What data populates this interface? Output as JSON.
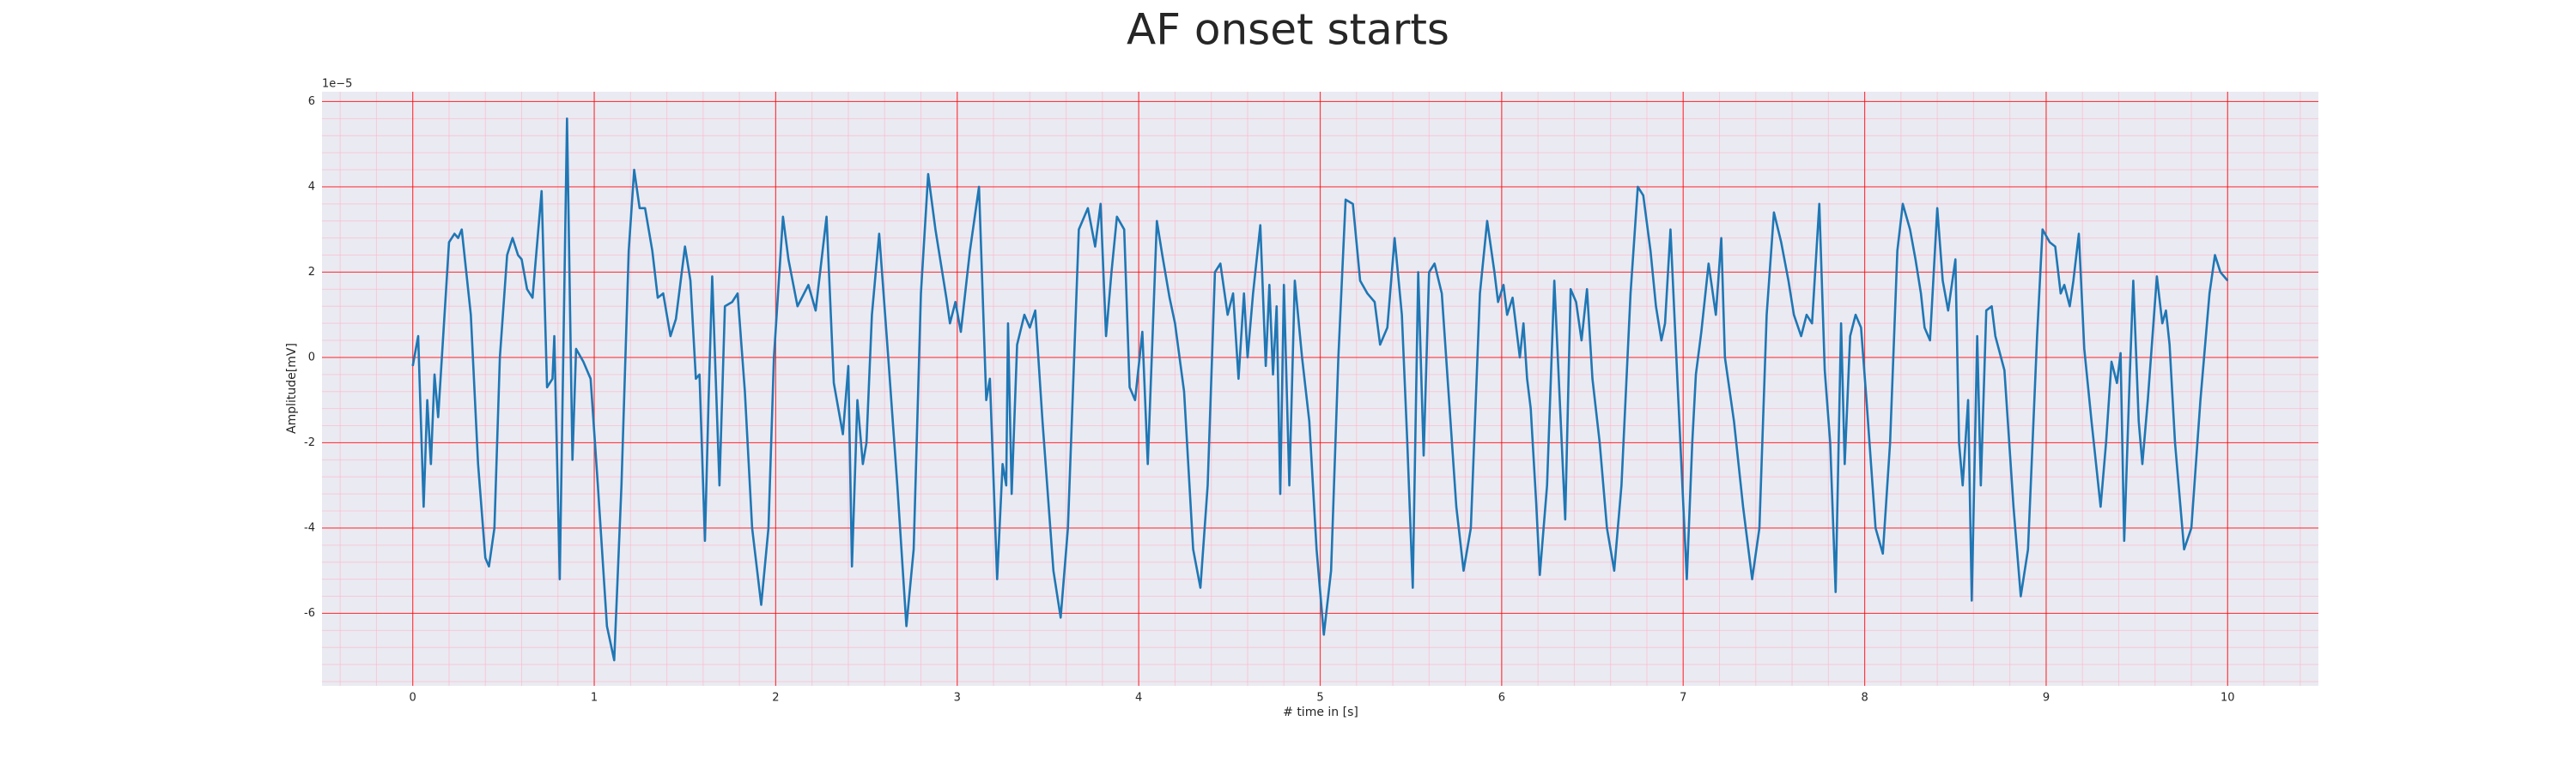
{
  "chart_data": {
    "type": "line",
    "title": "AF onset starts",
    "xlabel": "# time in [s]",
    "ylabel": "Amplitude[mV]",
    "y_offset_label": "1e−5",
    "xlim": [
      -0.5,
      10.5
    ],
    "ylim": [
      -7.7,
      6.23
    ],
    "xticks": [
      0,
      1,
      2,
      3,
      4,
      5,
      6,
      7,
      8,
      9,
      10
    ],
    "yticks": [
      -6,
      -4,
      -2,
      0,
      2,
      4,
      6
    ],
    "grid": true,
    "major_grid_color": "#ff0000",
    "minor_grid_color": "#ffb3c6",
    "minor_xstep": 0.2,
    "minor_ystep": 0.4,
    "background": "#eaeaf2",
    "color": "#1f77b4",
    "x": [
      0,
      0.03,
      0.06,
      0.08,
      0.1,
      0.12,
      0.14,
      0.2,
      0.23,
      0.25,
      0.27,
      0.32,
      0.36,
      0.4,
      0.42,
      0.45,
      0.48,
      0.52,
      0.55,
      0.58,
      0.6,
      0.63,
      0.66,
      0.71,
      0.74,
      0.77,
      0.78,
      0.81,
      0.85,
      0.88,
      0.9,
      0.94,
      0.98,
      1.02,
      1.07,
      1.11,
      1.15,
      1.19,
      1.22,
      1.25,
      1.28,
      1.32,
      1.35,
      1.38,
      1.42,
      1.45,
      1.5,
      1.53,
      1.56,
      1.58,
      1.61,
      1.63,
      1.65,
      1.69,
      1.72,
      1.76,
      1.79,
      1.83,
      1.87,
      1.92,
      1.96,
      1.99,
      2.04,
      2.07,
      2.12,
      2.18,
      2.22,
      2.28,
      2.32,
      2.37,
      2.4,
      2.42,
      2.45,
      2.48,
      2.5,
      2.53,
      2.57,
      2.62,
      2.67,
      2.72,
      2.76,
      2.8,
      2.84,
      2.88,
      2.91,
      2.94,
      2.96,
      2.99,
      3.02,
      3.07,
      3.12,
      3.16,
      3.18,
      3.22,
      3.25,
      3.27,
      3.28,
      3.3,
      3.33,
      3.37,
      3.4,
      3.43,
      3.47,
      3.53,
      3.57,
      3.61,
      3.67,
      3.72,
      3.76,
      3.79,
      3.82,
      3.85,
      3.88,
      3.92,
      3.95,
      3.98,
      4.02,
      4.05,
      4.1,
      4.13,
      4.17,
      4.2,
      4.25,
      4.3,
      4.34,
      4.38,
      4.42,
      4.45,
      4.49,
      4.52,
      4.55,
      4.58,
      4.6,
      4.63,
      4.67,
      4.7,
      4.72,
      4.74,
      4.76,
      4.78,
      4.8,
      4.83,
      4.86,
      4.9,
      4.94,
      4.98,
      5.02,
      5.06,
      5.1,
      5.14,
      5.18,
      5.22,
      5.26,
      5.3,
      5.33,
      5.37,
      5.41,
      5.45,
      5.48,
      5.51,
      5.54,
      5.57,
      5.6,
      5.63,
      5.67,
      5.71,
      5.75,
      5.79,
      5.83,
      5.88,
      5.92,
      5.96,
      5.98,
      6.01,
      6.03,
      6.06,
      6.1,
      6.12,
      6.14,
      6.16,
      6.19,
      6.21,
      6.25,
      6.29,
      6.32,
      6.35,
      6.38,
      6.41,
      6.44,
      6.47,
      6.5,
      6.54,
      6.58,
      6.62,
      6.66,
      6.71,
      6.75,
      6.78,
      6.82,
      6.85,
      6.88,
      6.9,
      6.93,
      6.97,
      7.02,
      7.05,
      7.07,
      7.1,
      7.14,
      7.18,
      7.21,
      7.23,
      7.28,
      7.33,
      7.38,
      7.42,
      7.46,
      7.5,
      7.54,
      7.58,
      7.61,
      7.65,
      7.68,
      7.71,
      7.75,
      7.78,
      7.81,
      7.84,
      7.87,
      7.89,
      7.92,
      7.95,
      7.98,
      8.01,
      8.06,
      8.1,
      8.14,
      8.18,
      8.21,
      8.25,
      8.28,
      8.31,
      8.33,
      8.36,
      8.4,
      8.43,
      8.46,
      8.5,
      8.52,
      8.54,
      8.57,
      8.59,
      8.62,
      8.64,
      8.67,
      8.7,
      8.72,
      8.77,
      8.82,
      8.86,
      8.9,
      8.95,
      8.98,
      9.02,
      9.05,
      9.08,
      9.1,
      9.13,
      9.15,
      9.18,
      9.21,
      9.25,
      9.3,
      9.33,
      9.36,
      9.39,
      9.41,
      9.43,
      9.46,
      9.48,
      9.51,
      9.53,
      9.56,
      9.61,
      9.64,
      9.66,
      9.68,
      9.71,
      9.76,
      9.8,
      9.85,
      9.9,
      9.93,
      9.96,
      10
    ],
    "values": [
      -0.2,
      0.5,
      -3.5,
      -1,
      -2.5,
      -0.4,
      -1.4,
      2.7,
      2.9,
      2.8,
      3,
      1,
      -2.5,
      -4.7,
      -4.9,
      -4,
      0,
      2.4,
      2.8,
      2.4,
      2.3,
      1.6,
      1.4,
      3.9,
      -0.7,
      -0.5,
      0.5,
      -5.2,
      5.6,
      -2.4,
      0.2,
      -0.1,
      -0.5,
      -3,
      -6.3,
      -7.1,
      -3,
      2.5,
      4.4,
      3.5,
      3.5,
      2.5,
      1.4,
      1.5,
      0.5,
      0.9,
      2.6,
      1.8,
      -0.5,
      -0.4,
      -4.3,
      -1,
      1.9,
      -3,
      1.2,
      1.3,
      1.5,
      -0.8,
      -4,
      -5.8,
      -4,
      0,
      3.3,
      2.3,
      1.2,
      1.7,
      1.1,
      3.3,
      -0.6,
      -1.8,
      -0.2,
      -4.9,
      -1,
      -2.5,
      -2,
      1,
      2.9,
      0,
      -3,
      -6.3,
      -4.5,
      1.5,
      4.3,
      3,
      2.2,
      1.4,
      0.8,
      1.3,
      0.6,
      2.5,
      4,
      -1,
      -0.5,
      -5.2,
      -2.5,
      -3,
      0.8,
      -3.2,
      0.3,
      1,
      0.7,
      1.1,
      -1.5,
      -5,
      -6.1,
      -4,
      3,
      3.5,
      2.6,
      3.6,
      0.5,
      2,
      3.3,
      3,
      -0.7,
      -1,
      0.6,
      -2.5,
      3.2,
      2.4,
      1.4,
      0.8,
      -0.8,
      -4.5,
      -5.4,
      -3,
      2,
      2.2,
      1,
      1.5,
      -0.5,
      1.5,
      0,
      1.5,
      3.1,
      -0.2,
      1.7,
      -0.4,
      1.2,
      -3.2,
      1.7,
      -3,
      1.8,
      0,
      -1.5,
      -4.5,
      -6.5,
      -5,
      0,
      3.7,
      3.6,
      1.8,
      1.5,
      1.3,
      0.3,
      0.7,
      2.8,
      1,
      -2,
      -5.4,
      2,
      -2.3,
      2,
      2.2,
      1.5,
      -1,
      -3.5,
      -5,
      -4,
      1.5,
      3.2,
      2,
      1.3,
      1.7,
      1,
      1.4,
      0,
      0.8,
      -0.5,
      -1.2,
      -3.4,
      -5.1,
      -3,
      1.8,
      -1,
      -3.8,
      1.6,
      1.3,
      0.4,
      1.6,
      -0.5,
      -2,
      -4,
      -5,
      -3,
      1.5,
      4,
      3.8,
      2.5,
      1.2,
      0.4,
      0.8,
      3,
      -0.7,
      -5.2,
      -2,
      -0.4,
      0.6,
      2.2,
      1,
      2.8,
      0,
      -1.5,
      -3.5,
      -5.2,
      -4,
      1,
      3.4,
      2.7,
      1.8,
      1,
      0.5,
      1,
      0.8,
      3.6,
      -0.3,
      -2,
      -5.5,
      0.8,
      -2.5,
      0.5,
      1,
      0.7,
      -1,
      -4,
      -4.6,
      -2,
      2.5,
      3.6,
      3,
      2.3,
      1.5,
      0.7,
      0.4,
      3.5,
      1.8,
      1.1,
      2.3,
      -2,
      -3,
      -1,
      -5.7,
      0.5,
      -3,
      1.1,
      1.2,
      0.5,
      -0.3,
      -3.5,
      -5.6,
      -4.5,
      0.5,
      3,
      2.7,
      2.6,
      1.5,
      1.7,
      1.2,
      1.8,
      2.9,
      0.2,
      -1.5,
      -3.5,
      -2,
      -0.1,
      -0.6,
      0.1,
      -4.3,
      -0.5,
      1.8,
      -1.5,
      -2.5,
      -1,
      1.9,
      0.8,
      1.1,
      0.3,
      -2,
      -4.5,
      -4,
      -1,
      1.5,
      2.4,
      2,
      1.8
    ]
  }
}
